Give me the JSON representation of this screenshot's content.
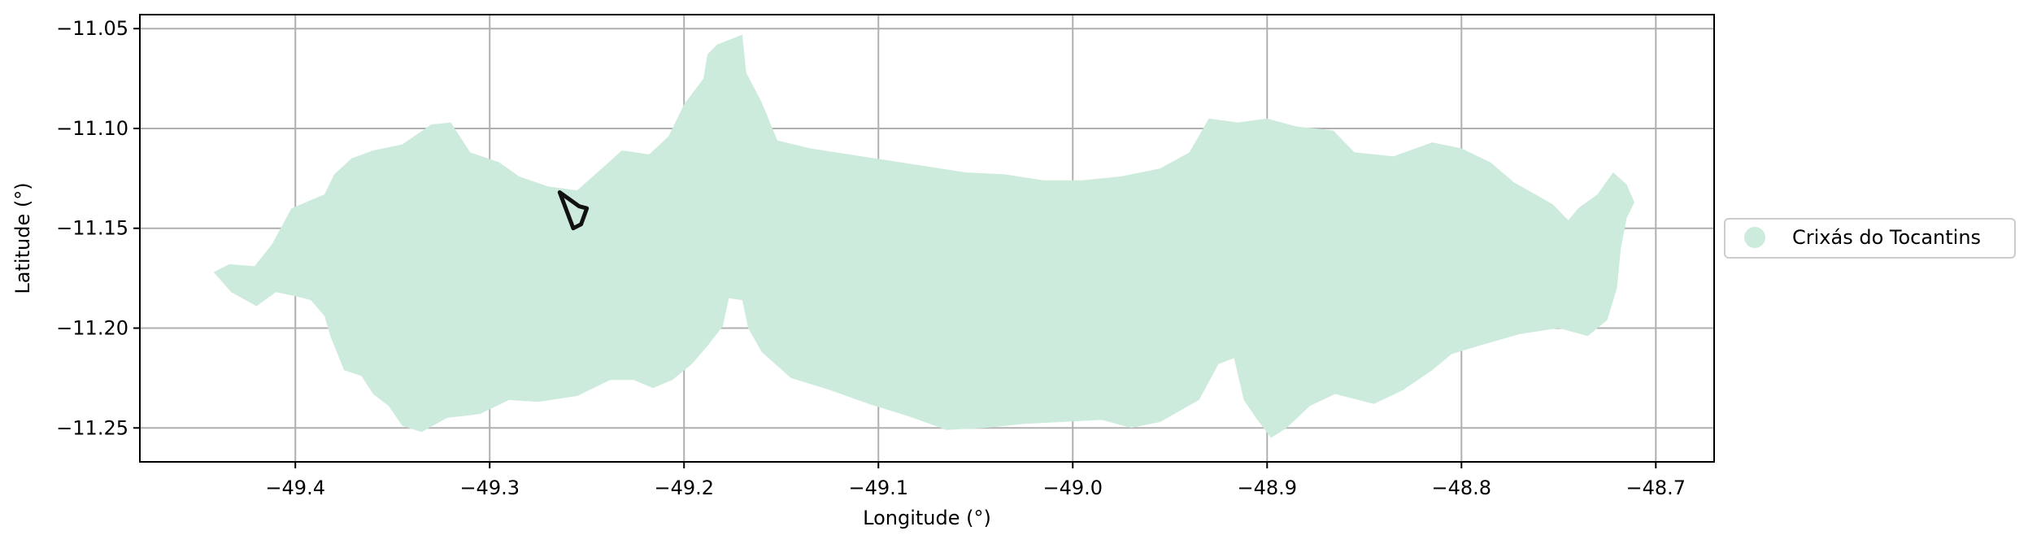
{
  "chart_data": {
    "type": "map",
    "xlabel": "Longitude (°)",
    "ylabel": "Latitude (°)",
    "xlim": [
      -49.48,
      -48.67
    ],
    "ylim": [
      -11.267,
      -11.043
    ],
    "grid": true,
    "x_ticks": [
      -49.4,
      -49.3,
      -49.2,
      -49.1,
      -49.0,
      -48.9,
      -48.8,
      -48.7
    ],
    "x_tick_labels": [
      "−49.4",
      "−49.3",
      "−49.2",
      "−49.1",
      "−49.0",
      "−48.9",
      "−48.8",
      "−48.7"
    ],
    "y_ticks": [
      -11.05,
      -11.1,
      -11.15,
      -11.2,
      -11.25
    ],
    "y_tick_labels": [
      "−11.05",
      "−11.10",
      "−11.15",
      "−11.20",
      "−11.25"
    ],
    "legend": {
      "placement": "right",
      "entries": [
        {
          "label": "Crixás do Tocantins",
          "color": "#cdebdd"
        }
      ]
    },
    "region": {
      "name": "Crixás do Tocantins",
      "fill_color": "#cdebdd",
      "outline_lonlat": [
        [
          -49.442,
          -11.172
        ],
        [
          -49.434,
          -11.168
        ],
        [
          -49.421,
          -11.169
        ],
        [
          -49.412,
          -11.158
        ],
        [
          -49.402,
          -11.14
        ],
        [
          -49.385,
          -11.133
        ],
        [
          -49.38,
          -11.123
        ],
        [
          -49.371,
          -11.115
        ],
        [
          -49.36,
          -11.111
        ],
        [
          -49.345,
          -11.108
        ],
        [
          -49.33,
          -11.098
        ],
        [
          -49.32,
          -11.097
        ],
        [
          -49.31,
          -11.112
        ],
        [
          -49.295,
          -11.117
        ],
        [
          -49.285,
          -11.124
        ],
        [
          -49.27,
          -11.129
        ],
        [
          -49.255,
          -11.131
        ],
        [
          -49.24,
          -11.118
        ],
        [
          -49.232,
          -11.111
        ],
        [
          -49.218,
          -11.113
        ],
        [
          -49.208,
          -11.104
        ],
        [
          -49.2,
          -11.088
        ],
        [
          -49.19,
          -11.075
        ],
        [
          -49.188,
          -11.063
        ],
        [
          -49.183,
          -11.058
        ],
        [
          -49.17,
          -11.053
        ],
        [
          -49.168,
          -11.072
        ],
        [
          -49.16,
          -11.087
        ],
        [
          -49.152,
          -11.106
        ],
        [
          -49.135,
          -11.11
        ],
        [
          -49.115,
          -11.113
        ],
        [
          -49.095,
          -11.116
        ],
        [
          -49.075,
          -11.119
        ],
        [
          -49.055,
          -11.122
        ],
        [
          -49.035,
          -11.123
        ],
        [
          -49.015,
          -11.126
        ],
        [
          -48.995,
          -11.126
        ],
        [
          -48.975,
          -11.124
        ],
        [
          -48.955,
          -11.12
        ],
        [
          -48.94,
          -11.112
        ],
        [
          -48.93,
          -11.095
        ],
        [
          -48.915,
          -11.097
        ],
        [
          -48.9,
          -11.095
        ],
        [
          -48.885,
          -11.099
        ],
        [
          -48.866,
          -11.101
        ],
        [
          -48.855,
          -11.112
        ],
        [
          -48.835,
          -11.114
        ],
        [
          -48.815,
          -11.107
        ],
        [
          -48.8,
          -11.11
        ],
        [
          -48.785,
          -11.117
        ],
        [
          -48.773,
          -11.127
        ],
        [
          -48.762,
          -11.133
        ],
        [
          -48.753,
          -11.138
        ],
        [
          -48.745,
          -11.146
        ],
        [
          -48.74,
          -11.14
        ],
        [
          -48.73,
          -11.133
        ],
        [
          -48.722,
          -11.122
        ],
        [
          -48.715,
          -11.128
        ],
        [
          -48.711,
          -11.137
        ],
        [
          -48.715,
          -11.145
        ],
        [
          -48.718,
          -11.16
        ],
        [
          -48.72,
          -11.18
        ],
        [
          -48.725,
          -11.196
        ],
        [
          -48.735,
          -11.204
        ],
        [
          -48.75,
          -11.2
        ],
        [
          -48.77,
          -11.203
        ],
        [
          -48.788,
          -11.208
        ],
        [
          -48.805,
          -11.213
        ],
        [
          -48.815,
          -11.221
        ],
        [
          -48.83,
          -11.231
        ],
        [
          -48.845,
          -11.238
        ],
        [
          -48.865,
          -11.233
        ],
        [
          -48.878,
          -11.239
        ],
        [
          -48.89,
          -11.25
        ],
        [
          -48.898,
          -11.255
        ],
        [
          -48.905,
          -11.246
        ],
        [
          -48.912,
          -11.236
        ],
        [
          -48.917,
          -11.215
        ],
        [
          -48.925,
          -11.218
        ],
        [
          -48.935,
          -11.236
        ],
        [
          -48.955,
          -11.247
        ],
        [
          -48.97,
          -11.25
        ],
        [
          -48.985,
          -11.246
        ],
        [
          -49.005,
          -11.247
        ],
        [
          -49.025,
          -11.248
        ],
        [
          -49.045,
          -11.25
        ],
        [
          -49.065,
          -11.251
        ],
        [
          -49.085,
          -11.244
        ],
        [
          -49.105,
          -11.238
        ],
        [
          -49.125,
          -11.231
        ],
        [
          -49.145,
          -11.225
        ],
        [
          -49.16,
          -11.212
        ],
        [
          -49.167,
          -11.2
        ],
        [
          -49.17,
          -11.186
        ],
        [
          -49.177,
          -11.185
        ],
        [
          -49.18,
          -11.199
        ],
        [
          -49.188,
          -11.209
        ],
        [
          -49.196,
          -11.218
        ],
        [
          -49.206,
          -11.226
        ],
        [
          -49.216,
          -11.23
        ],
        [
          -49.226,
          -11.226
        ],
        [
          -49.238,
          -11.226
        ],
        [
          -49.255,
          -11.234
        ],
        [
          -49.275,
          -11.237
        ],
        [
          -49.29,
          -11.236
        ],
        [
          -49.305,
          -11.243
        ],
        [
          -49.322,
          -11.245
        ],
        [
          -49.335,
          -11.252
        ],
        [
          -49.345,
          -11.249
        ],
        [
          -49.352,
          -11.239
        ],
        [
          -49.36,
          -11.233
        ],
        [
          -49.366,
          -11.224
        ],
        [
          -49.375,
          -11.221
        ],
        [
          -49.382,
          -11.204
        ],
        [
          -49.385,
          -11.194
        ],
        [
          -49.392,
          -11.186
        ],
        [
          -49.4,
          -11.184
        ],
        [
          -49.41,
          -11.182
        ],
        [
          -49.42,
          -11.189
        ],
        [
          -49.433,
          -11.182
        ],
        [
          -49.442,
          -11.172
        ]
      ]
    },
    "highlight": {
      "stroke_color": "#111111",
      "outline_lonlat": [
        [
          -49.264,
          -11.132
        ],
        [
          -49.257,
          -11.15
        ],
        [
          -49.253,
          -11.148
        ],
        [
          -49.25,
          -11.14
        ],
        [
          -49.254,
          -11.139
        ],
        [
          -49.264,
          -11.132
        ]
      ]
    }
  }
}
